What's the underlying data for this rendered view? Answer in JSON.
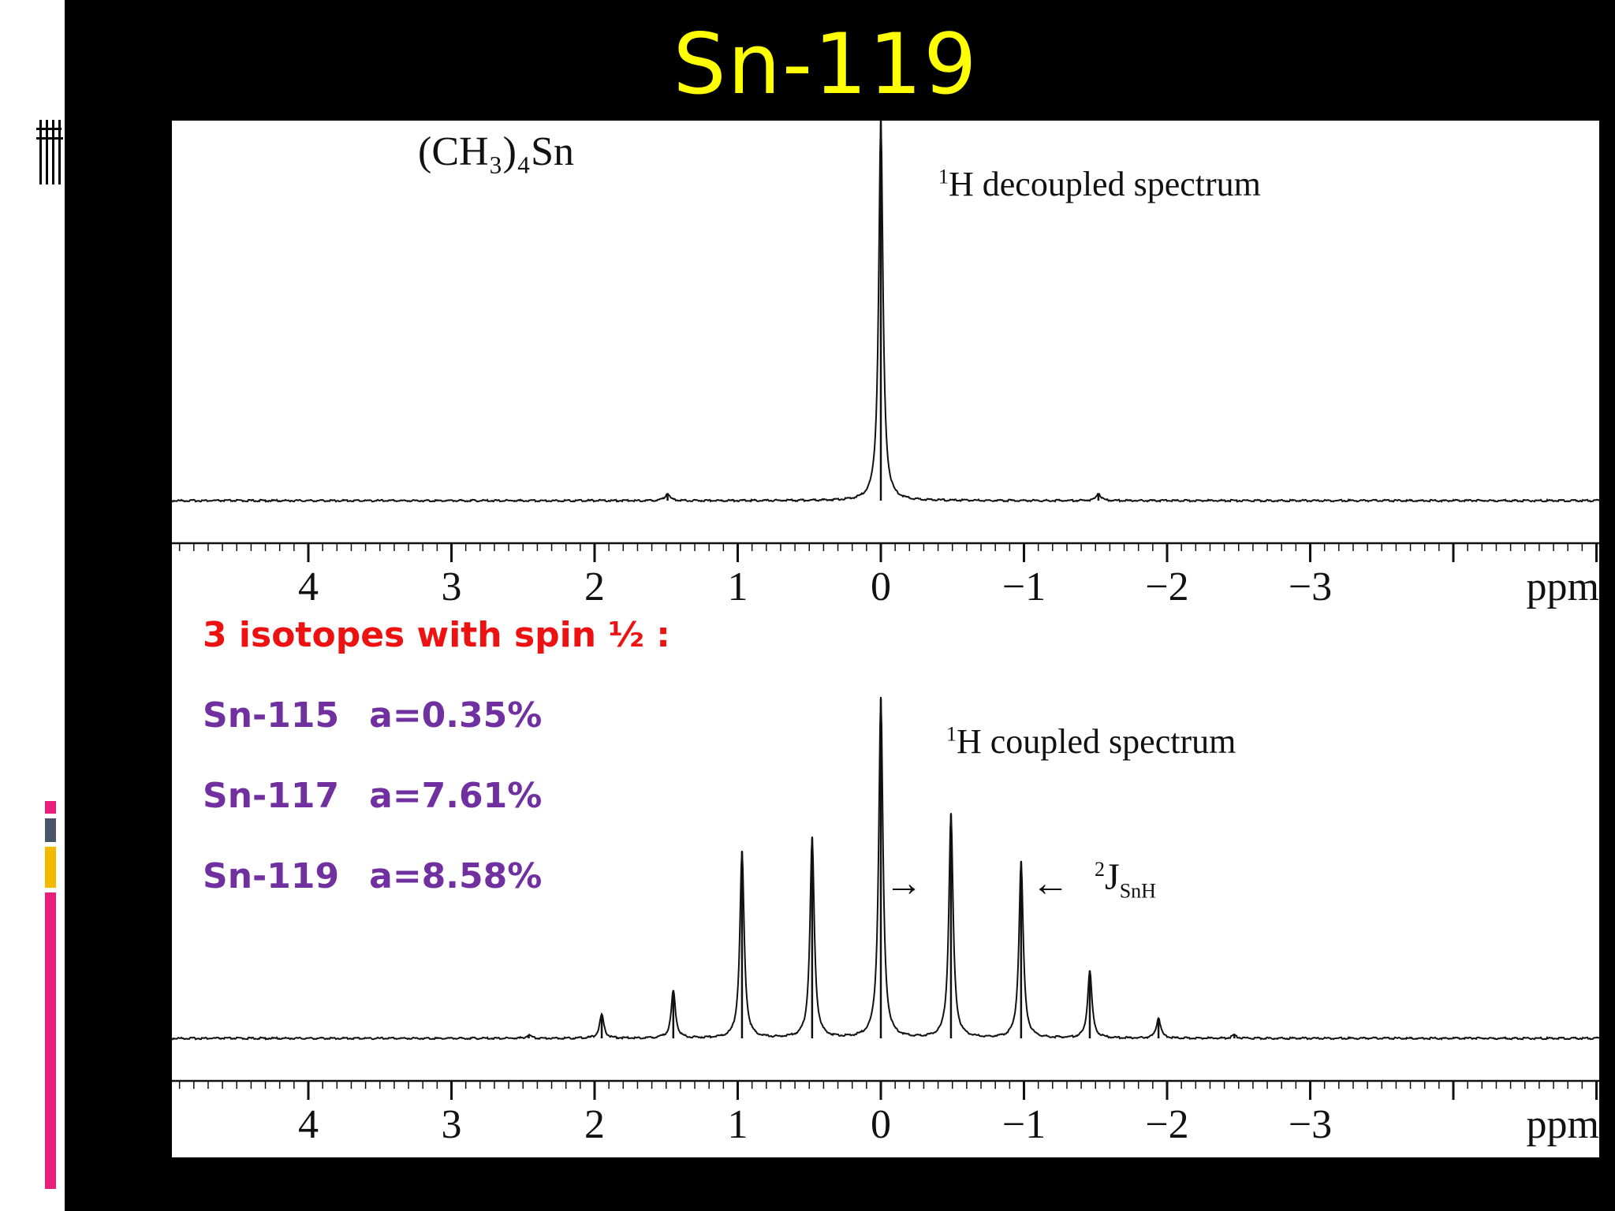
{
  "slide": {
    "title": "Sn-119",
    "accent_colors": {
      "title": "#ffff00",
      "notes_heading": "#ee1111",
      "notes_isotopes": "#7030a0",
      "bar_pink": "#e91e7a",
      "bar_gold": "#f5b800",
      "bar_slate": "#4a5468"
    }
  },
  "figure": {
    "compound": "(CH₃)₄Sn",
    "top_label_super": "1",
    "top_label": "H decoupled  spectrum",
    "bottom_label_super": "1",
    "bottom_label": "H coupled spectrum",
    "coupling_super": "2",
    "coupling_main": "J",
    "coupling_sub": "SnH",
    "arrow_left": "→",
    "arrow_right": "←"
  },
  "notes": {
    "heading": "3 isotopes with spin ½ :",
    "isotopes": [
      {
        "name": "Sn-115",
        "abundance": "a=0.35%"
      },
      {
        "name": "Sn-117",
        "abundance": "a=7.61%"
      },
      {
        "name": "Sn-119",
        "abundance": "a=8.58%"
      }
    ]
  },
  "chart_data": [
    {
      "type": "line",
      "title": "",
      "xlabel": "ppm",
      "ylabel": "",
      "x_direction": "reversed",
      "xlim": [
        5,
        -5
      ],
      "ylim": [
        0,
        1
      ],
      "grid": false,
      "major_ticks": [
        4,
        3,
        2,
        1,
        0,
        -1,
        -2,
        -3
      ],
      "tick_labels": [
        "4",
        "3",
        "2",
        "1",
        "0",
        "−1",
        "−2",
        "−3"
      ],
      "series": [
        {
          "peaks": [
            {
              "ppm": 1.49,
              "height": 0.02
            },
            {
              "ppm": 0.0,
              "height": 1.0
            },
            {
              "ppm": -1.52,
              "height": 0.02
            }
          ]
        }
      ]
    },
    {
      "type": "line",
      "title": "",
      "xlabel": "ppm",
      "ylabel": "",
      "x_direction": "reversed",
      "xlim": [
        5,
        -5
      ],
      "ylim": [
        0,
        1
      ],
      "grid": false,
      "major_ticks": [
        4,
        3,
        2,
        1,
        0,
        -1,
        -2,
        -3
      ],
      "tick_labels": [
        "4",
        "3",
        "2",
        "1",
        "0",
        "−1",
        "−2",
        "−3"
      ],
      "series": [
        {
          "peaks": [
            {
              "ppm": 2.46,
              "height": 0.01
            },
            {
              "ppm": 1.95,
              "height": 0.07
            },
            {
              "ppm": 1.45,
              "height": 0.14
            },
            {
              "ppm": 0.97,
              "height": 0.55
            },
            {
              "ppm": 0.48,
              "height": 0.59
            },
            {
              "ppm": 0.0,
              "height": 1.0
            },
            {
              "ppm": -0.49,
              "height": 0.66
            },
            {
              "ppm": -0.98,
              "height": 0.52
            },
            {
              "ppm": -1.46,
              "height": 0.2
            },
            {
              "ppm": -1.94,
              "height": 0.06
            },
            {
              "ppm": -2.47,
              "height": 0.01
            }
          ]
        }
      ]
    }
  ]
}
